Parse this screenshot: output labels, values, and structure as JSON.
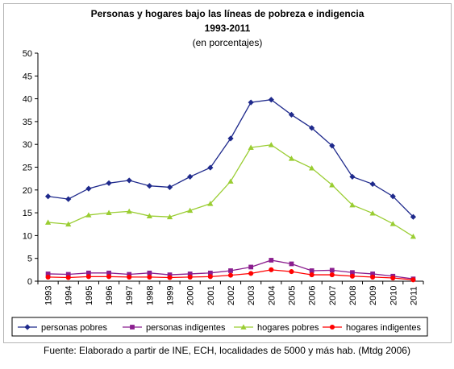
{
  "chart_data": {
    "type": "line",
    "title": "Personas y hogares bajo las líneas de pobreza e indigencia",
    "subtitle": "1993-2011",
    "note": "(en porcentajes)",
    "xlabel": "",
    "ylabel": "",
    "categories": [
      "1993",
      "1994",
      "1995",
      "1996",
      "1997",
      "1998",
      "1999",
      "2000",
      "2001",
      "2002",
      "2003",
      "2004",
      "2005",
      "2006",
      "2007",
      "2008",
      "2009",
      "2010",
      "2011"
    ],
    "ylim": [
      0,
      50
    ],
    "yticks": [
      0,
      5,
      10,
      15,
      20,
      25,
      30,
      35,
      40,
      45,
      50
    ],
    "legend_position": "bottom",
    "grid": false,
    "series": [
      {
        "name": "personas pobres",
        "color": "#1f2a8c",
        "marker": "diamond",
        "values": [
          18.6,
          18.0,
          20.3,
          21.5,
          22.1,
          20.9,
          20.6,
          22.9,
          24.9,
          31.3,
          39.2,
          39.8,
          36.5,
          33.6,
          29.7,
          22.9,
          21.3,
          18.6,
          14.1
        ]
      },
      {
        "name": "personas indigentes",
        "color": "#8b1e8f",
        "marker": "square",
        "values": [
          1.6,
          1.5,
          1.8,
          1.8,
          1.5,
          1.8,
          1.4,
          1.6,
          1.8,
          2.3,
          3.1,
          4.6,
          3.8,
          2.3,
          2.4,
          1.9,
          1.6,
          1.1,
          0.5
        ]
      },
      {
        "name": "hogares pobres",
        "color": "#9acd32",
        "marker": "triangle",
        "values": [
          12.9,
          12.5,
          14.5,
          15.0,
          15.3,
          14.3,
          14.1,
          15.5,
          17.0,
          21.9,
          29.3,
          29.9,
          26.9,
          24.8,
          21.1,
          16.7,
          14.9,
          12.6,
          9.8
        ]
      },
      {
        "name": "hogares indigentes",
        "color": "#ff0000",
        "marker": "circle",
        "values": [
          0.9,
          0.8,
          1.0,
          1.0,
          0.9,
          0.9,
          0.8,
          0.9,
          1.0,
          1.3,
          1.7,
          2.5,
          2.1,
          1.4,
          1.4,
          1.1,
          0.9,
          0.7,
          0.3
        ]
      }
    ]
  },
  "source_note": "Fuente: Elaborado a partir de INE, ECH, localidades de 5000 y más hab. (Mtdg 2006)"
}
